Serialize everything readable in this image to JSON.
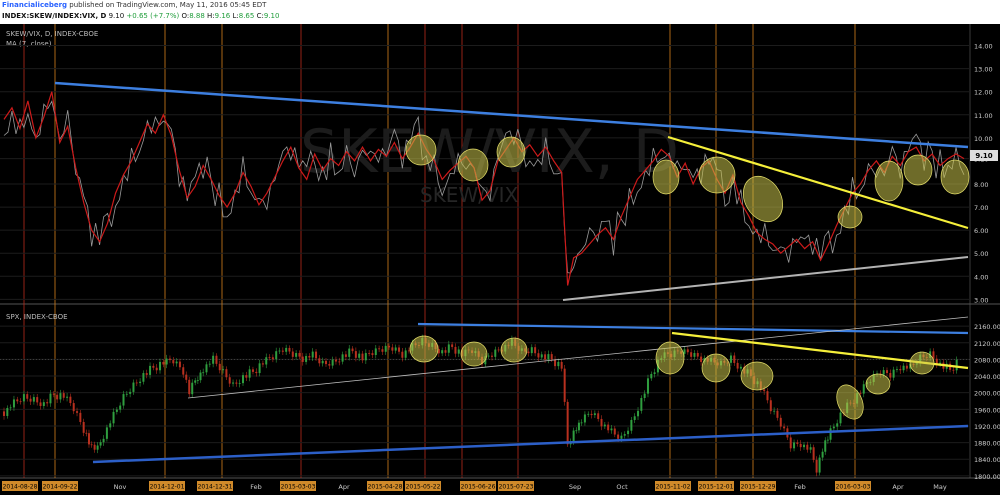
{
  "header": {
    "brand": "Financialiceberg",
    "published": "published on TradingView.com, May 11, 2016 05:45 EDT",
    "symbol_line": "INDEX:SKEW/INDEX:VIX, D",
    "last": "9.10",
    "change": "+0.65 (+7.7%)",
    "o_label": "O:",
    "o_val": "8.88",
    "h_label": "H:",
    "h_val": "9.16",
    "l_label": "L:",
    "l_val": "8.65",
    "c_label": "C:",
    "c_val": "9.10"
  },
  "panels": {
    "top": {
      "title": "SKEW/VIX, D, INDEX-CBOE",
      "indicator": "MA (7, close)",
      "watermark_big": "SKEW/VIX, D",
      "watermark_small": "SKEW/VIX",
      "price_tag": "9.10"
    },
    "bottom": {
      "title": "SPX, INDEX-CBOE"
    }
  },
  "colors": {
    "background": "#000000",
    "blue_line": "#3d7fe0",
    "yellow_line": "#f5ef3a",
    "white_line": "#b3b3b3",
    "ma_line": "#cc1a1a",
    "price_line": "#9a9a9a",
    "vline_orange": "#c8781a",
    "vline_red": "#b0281a",
    "bull_candle": "#2f9e3f",
    "bear_candle": "#b8301f",
    "circle_fill": "#c8c24a",
    "date_tag": "#d08a2a"
  },
  "chart_data": [
    {
      "type": "line",
      "title": "SKEW/VIX, D, INDEX-CBOE",
      "series": [
        {
          "name": "MA (7, close)"
        }
      ],
      "y_ticks": [
        "14.00",
        "13.00",
        "12.00",
        "11.00",
        "10.00",
        "9.10",
        "8.00",
        "7.00",
        "6.00",
        "5.00",
        "4.00",
        "3.00"
      ],
      "ylim": [
        3,
        14.5
      ],
      "last_value": 9.1,
      "points": [
        [
          0,
          10.8
        ],
        [
          8,
          11.3
        ],
        [
          16,
          10.4
        ],
        [
          24,
          11.6
        ],
        [
          32,
          10.0
        ],
        [
          40,
          10.9
        ],
        [
          48,
          12.0
        ],
        [
          56,
          9.8
        ],
        [
          64,
          10.5
        ],
        [
          72,
          8.7
        ],
        [
          80,
          7.2
        ],
        [
          88,
          6.0
        ],
        [
          96,
          5.5
        ],
        [
          104,
          6.3
        ],
        [
          112,
          7.6
        ],
        [
          120,
          8.4
        ],
        [
          128,
          9.0
        ],
        [
          136,
          9.8
        ],
        [
          144,
          10.6
        ],
        [
          152,
          10.2
        ],
        [
          160,
          11.0
        ],
        [
          168,
          10.1
        ],
        [
          176,
          8.6
        ],
        [
          184,
          7.4
        ],
        [
          192,
          7.9
        ],
        [
          200,
          8.8
        ],
        [
          208,
          8.2
        ],
        [
          216,
          7.5
        ],
        [
          224,
          7.0
        ],
        [
          232,
          7.6
        ],
        [
          240,
          8.5
        ],
        [
          248,
          7.9
        ],
        [
          256,
          7.1
        ],
        [
          264,
          7.6
        ],
        [
          272,
          8.3
        ],
        [
          280,
          9.0
        ],
        [
          288,
          9.6
        ],
        [
          296,
          8.7
        ],
        [
          304,
          8.2
        ],
        [
          312,
          9.3
        ],
        [
          320,
          8.6
        ],
        [
          328,
          9.1
        ],
        [
          336,
          8.8
        ],
        [
          344,
          9.4
        ],
        [
          352,
          9.0
        ],
        [
          360,
          9.6
        ],
        [
          368,
          9.0
        ],
        [
          376,
          9.5
        ],
        [
          384,
          9.2
        ],
        [
          392,
          9.8
        ],
        [
          400,
          9.1
        ],
        [
          408,
          9.6
        ],
        [
          416,
          10.2
        ],
        [
          424,
          9.5
        ],
        [
          432,
          9.0
        ],
        [
          440,
          8.2
        ],
        [
          448,
          8.6
        ],
        [
          456,
          8.9
        ],
        [
          464,
          9.2
        ],
        [
          472,
          8.7
        ],
        [
          480,
          7.3
        ],
        [
          488,
          7.7
        ],
        [
          496,
          9.0
        ],
        [
          504,
          9.5
        ],
        [
          512,
          10.0
        ],
        [
          520,
          9.4
        ],
        [
          528,
          9.7
        ],
        [
          536,
          9.2
        ],
        [
          544,
          9.6
        ],
        [
          552,
          9.0
        ],
        [
          560,
          8.5
        ],
        [
          566,
          3.6
        ],
        [
          572,
          4.8
        ],
        [
          580,
          5.0
        ],
        [
          588,
          5.4
        ],
        [
          596,
          5.8
        ],
        [
          604,
          6.1
        ],
        [
          612,
          5.6
        ],
        [
          620,
          6.6
        ],
        [
          628,
          7.4
        ],
        [
          636,
          8.2
        ],
        [
          644,
          8.6
        ],
        [
          652,
          9.0
        ],
        [
          660,
          9.5
        ],
        [
          668,
          9.2
        ],
        [
          676,
          8.3
        ],
        [
          684,
          8.9
        ],
        [
          692,
          8.0
        ],
        [
          700,
          8.7
        ],
        [
          708,
          9.0
        ],
        [
          716,
          8.2
        ],
        [
          724,
          7.6
        ],
        [
          732,
          8.4
        ],
        [
          740,
          7.2
        ],
        [
          748,
          6.6
        ],
        [
          756,
          5.9
        ],
        [
          764,
          5.6
        ],
        [
          772,
          5.4
        ],
        [
          780,
          5.0
        ],
        [
          788,
          5.3
        ],
        [
          796,
          5.6
        ],
        [
          804,
          5.2
        ],
        [
          812,
          5.5
        ],
        [
          820,
          4.7
        ],
        [
          828,
          5.4
        ],
        [
          836,
          6.2
        ],
        [
          844,
          6.9
        ],
        [
          852,
          7.6
        ],
        [
          860,
          8.0
        ],
        [
          868,
          8.6
        ],
        [
          876,
          9.0
        ],
        [
          884,
          8.5
        ],
        [
          892,
          9.2
        ],
        [
          900,
          8.8
        ],
        [
          908,
          9.4
        ],
        [
          916,
          9.6
        ],
        [
          924,
          9.0
        ],
        [
          932,
          9.3
        ],
        [
          940,
          8.8
        ],
        [
          948,
          9.1
        ],
        [
          956,
          9.3
        ],
        [
          964,
          9.1
        ]
      ]
    },
    {
      "type": "bar",
      "title": "SPX, INDEX-CBOE",
      "y_ticks": [
        "2160.00",
        "2120.00",
        "2080.00",
        "2040.00",
        "2000.00",
        "1960.00",
        "1920.00",
        "1880.00",
        "1840.00",
        "1800.00"
      ],
      "ylim": [
        1790,
        2170
      ],
      "points": [
        [
          0,
          1955
        ],
        [
          10,
          1975
        ],
        [
          20,
          1990
        ],
        [
          30,
          1985
        ],
        [
          40,
          1975
        ],
        [
          50,
          1995
        ],
        [
          60,
          1990
        ],
        [
          70,
          1960
        ],
        [
          80,
          1910
        ],
        [
          88,
          1870
        ],
        [
          94,
          1865
        ],
        [
          100,
          1900
        ],
        [
          110,
          1945
        ],
        [
          120,
          1990
        ],
        [
          130,
          2020
        ],
        [
          140,
          2045
        ],
        [
          150,
          2060
        ],
        [
          160,
          2070
        ],
        [
          170,
          2075
        ],
        [
          180,
          2050
        ],
        [
          186,
          2000
        ],
        [
          192,
          2030
        ],
        [
          200,
          2060
        ],
        [
          210,
          2080
        ],
        [
          220,
          2050
        ],
        [
          230,
          2020
        ],
        [
          240,
          2040
        ],
        [
          250,
          2050
        ],
        [
          260,
          2070
        ],
        [
          270,
          2085
        ],
        [
          280,
          2105
        ],
        [
          290,
          2095
        ],
        [
          300,
          2085
        ],
        [
          310,
          2090
        ],
        [
          320,
          2070
        ],
        [
          330,
          2075
        ],
        [
          340,
          2090
        ],
        [
          350,
          2100
        ],
        [
          360,
          2080
        ],
        [
          370,
          2095
        ],
        [
          380,
          2105
        ],
        [
          390,
          2110
        ],
        [
          400,
          2095
        ],
        [
          410,
          2110
        ],
        [
          420,
          2125
        ],
        [
          430,
          2115
        ],
        [
          440,
          2100
        ],
        [
          450,
          2110
        ],
        [
          460,
          2090
        ],
        [
          470,
          2100
        ],
        [
          480,
          2075
        ],
        [
          490,
          2095
        ],
        [
          500,
          2110
        ],
        [
          510,
          2120
        ],
        [
          520,
          2100
        ],
        [
          530,
          2105
        ],
        [
          540,
          2090
        ],
        [
          550,
          2080
        ],
        [
          560,
          2060
        ],
        [
          566,
          1875
        ],
        [
          572,
          1905
        ],
        [
          580,
          1935
        ],
        [
          590,
          1955
        ],
        [
          600,
          1930
        ],
        [
          610,
          1905
        ],
        [
          620,
          1890
        ],
        [
          630,
          1930
        ],
        [
          640,
          1985
        ],
        [
          650,
          2045
        ],
        [
          660,
          2085
        ],
        [
          670,
          2090
        ],
        [
          680,
          2100
        ],
        [
          690,
          2095
        ],
        [
          700,
          2085
        ],
        [
          710,
          2075
        ],
        [
          720,
          2070
        ],
        [
          730,
          2085
        ],
        [
          740,
          2060
        ],
        [
          750,
          2040
        ],
        [
          760,
          2010
        ],
        [
          770,
          1960
        ],
        [
          780,
          1925
        ],
        [
          790,
          1875
        ],
        [
          800,
          1880
        ],
        [
          810,
          1860
        ],
        [
          816,
          1818
        ],
        [
          822,
          1865
        ],
        [
          830,
          1910
        ],
        [
          840,
          1950
        ],
        [
          850,
          1975
        ],
        [
          860,
          2000
        ],
        [
          870,
          2030
        ],
        [
          880,
          2050
        ],
        [
          890,
          2045
        ],
        [
          900,
          2065
        ],
        [
          910,
          2060
        ],
        [
          920,
          2085
        ],
        [
          930,
          2095
        ],
        [
          940,
          2070
        ],
        [
          950,
          2055
        ],
        [
          960,
          2080
        ]
      ]
    }
  ],
  "x_axis": {
    "plain_labels": [
      "Nov",
      "Feb",
      "Apr",
      "Sep",
      "Oct",
      "Feb",
      "Apr",
      "May"
    ],
    "date_tags": [
      "2014-08-28",
      "2014-09-22",
      "2014-12-01",
      "2014-12-31",
      "2015-03-03",
      "2015-04-28",
      "2015-05-22",
      "2015-06-26",
      "2015-07-23",
      "2015-11-02",
      "2015-12-01",
      "2015-12-29",
      "2016-03-03"
    ]
  }
}
